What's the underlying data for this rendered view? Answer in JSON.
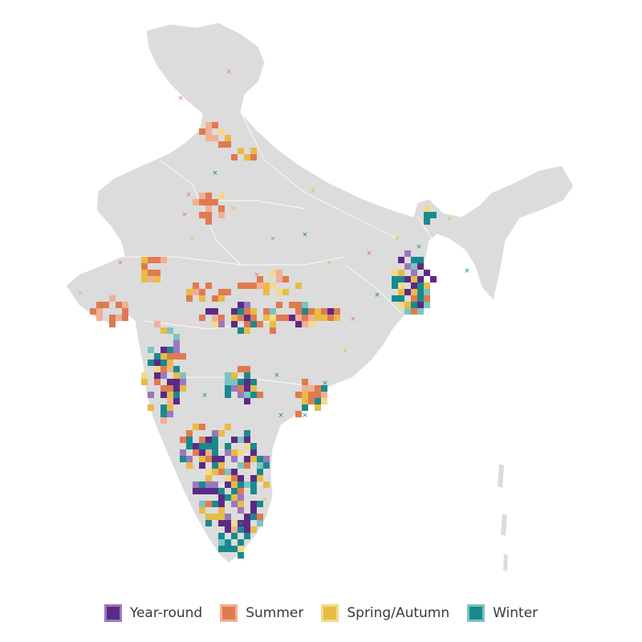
{
  "map": {
    "land_color": "#dcdcdc",
    "border_color": "#ffffff",
    "categories": [
      {
        "key": "year_round",
        "label": "Year-round",
        "fill": "#5b2a86",
        "border": "#9a78bf"
      },
      {
        "key": "summer",
        "label": "Summer",
        "fill": "#e07a50",
        "border": "#f0b095"
      },
      {
        "key": "spring_autumn",
        "label": "Spring/Autumn",
        "fill": "#e8bb45",
        "border": "#f3d98a"
      },
      {
        "key": "winter",
        "label": "Winter",
        "fill": "#188a8e",
        "border": "#7cc3c2"
      }
    ]
  },
  "legend": {
    "items": [
      {
        "label": "Year-round",
        "color": "#5b2a86"
      },
      {
        "label": "Summer",
        "color": "#e07a50"
      },
      {
        "label": "Spring/Autumn",
        "color": "#e8bb45"
      },
      {
        "label": "Winter",
        "color": "#188a8e"
      }
    ]
  }
}
